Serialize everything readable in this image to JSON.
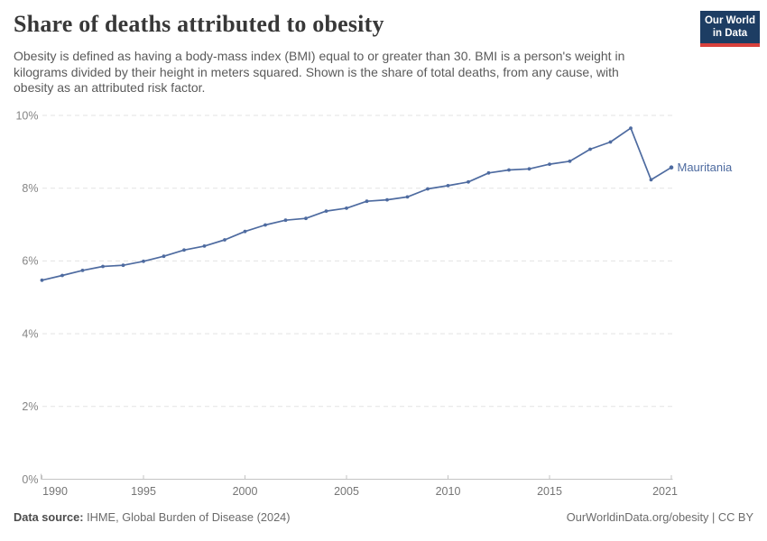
{
  "header": {
    "title": "Share of deaths attributed to obesity",
    "subtitle_lines": [
      "Obesity is defined as having a body-mass index (BMI) equal to or greater than 30. BMI is a person's weight in",
      "kilograms divided by their height in meters squared. Shown is the share of total deaths, from any cause, with",
      "obesity as an attributed risk factor."
    ],
    "logo": {
      "line1": "Our World",
      "line2": "in Data"
    }
  },
  "chart_data": {
    "type": "line",
    "title": "Share of deaths attributed to obesity",
    "xlabel": "",
    "ylabel": "",
    "unit": "%",
    "ylim": [
      0,
      10
    ],
    "yticks": [
      0,
      2,
      4,
      6,
      8,
      10
    ],
    "xticks": [
      1990,
      1995,
      2000,
      2005,
      2010,
      2015,
      2021
    ],
    "grid": true,
    "legend_position": "end-of-line-label",
    "series": [
      {
        "name": "Mauritania",
        "x": [
          1990,
          1991,
          1992,
          1993,
          1994,
          1995,
          1996,
          1997,
          1998,
          1999,
          2000,
          2001,
          2002,
          2003,
          2004,
          2005,
          2006,
          2007,
          2008,
          2009,
          2010,
          2011,
          2012,
          2013,
          2014,
          2015,
          2016,
          2017,
          2018,
          2019,
          2020,
          2021
        ],
        "values": [
          5.47,
          5.6,
          5.74,
          5.85,
          5.88,
          5.99,
          6.13,
          6.3,
          6.41,
          6.58,
          6.81,
          6.99,
          7.12,
          7.17,
          7.37,
          7.45,
          7.64,
          7.68,
          7.76,
          7.98,
          8.07,
          8.17,
          8.42,
          8.5,
          8.53,
          8.66,
          8.74,
          9.07,
          9.27,
          9.65,
          8.23,
          8.57
        ]
      }
    ]
  },
  "colors": {
    "line": "#4e6ba0",
    "grid": "#e3e3e3",
    "axis": "#c4c4c4",
    "x_tick_label": "#757575",
    "y_tick_label": "#858585",
    "logo_bg": "#1d3d63",
    "logo_stripe": "#d8413c"
  },
  "footer": {
    "source_label": "Data source:",
    "source_text": " IHME, Global Burden of Disease (2024)",
    "credit": "OurWorldinData.org/obesity | CC BY"
  }
}
